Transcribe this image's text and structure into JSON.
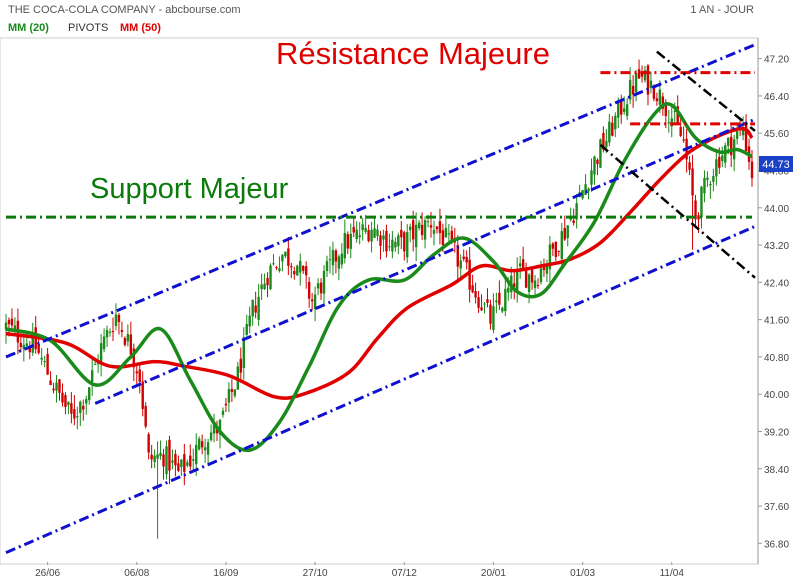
{
  "header": {
    "title": "THE COCA-COLA COMPANY - abcbourse.com",
    "period": "1 AN - JOUR"
  },
  "legend": [
    {
      "label": "MM (20)",
      "color": "#1a8a1a"
    },
    {
      "label": "PIVOTS",
      "color": "#333333"
    },
    {
      "label": "MM (50)",
      "color": "#e00000"
    }
  ],
  "annotations": {
    "resistance": "Résistance Majeure",
    "support": "Support Majeur"
  },
  "chart_data": {
    "type": "candlestick",
    "x_tick_labels": [
      {
        "label": "26/06",
        "index": 14
      },
      {
        "label": "06/08",
        "index": 44
      },
      {
        "label": "16/09",
        "index": 74
      },
      {
        "label": "27/10",
        "index": 104
      },
      {
        "label": "07/12",
        "index": 134
      },
      {
        "label": "20/01",
        "index": 164
      },
      {
        "label": "01/03",
        "index": 194
      },
      {
        "label": "11/04",
        "index": 224
      }
    ],
    "y_ticks": [
      36.8,
      37.6,
      38.4,
      39.2,
      40.0,
      40.8,
      41.6,
      42.4,
      43.2,
      44.0,
      44.8,
      45.6,
      46.4,
      47.2
    ],
    "ylim": [
      36.4,
      47.6
    ],
    "last_price": "44.73",
    "colors": {
      "up": "#1a8a1a",
      "down": "#d00000",
      "mm20": "#1a8a1a",
      "mm50": "#e00000",
      "channel": "#1010d0",
      "resistance": "#e00000",
      "support": "#0a7a0a",
      "wedge": "#000000",
      "annotation_resistance": "#e00000",
      "annotation_support": "#0a7a0a"
    },
    "close_anchors": [
      [
        0,
        41.45
      ],
      [
        10,
        41.0
      ],
      [
        16,
        40.2
      ],
      [
        22,
        39.5
      ],
      [
        27,
        40.0
      ],
      [
        32,
        41.0
      ],
      [
        37,
        41.7
      ],
      [
        42,
        41.0
      ],
      [
        45,
        40.4
      ],
      [
        48,
        38.6
      ],
      [
        53,
        38.7
      ],
      [
        58,
        38.3
      ],
      [
        62,
        38.6
      ],
      [
        67,
        39.1
      ],
      [
        72,
        39.3
      ],
      [
        78,
        40.4
      ],
      [
        83,
        41.8
      ],
      [
        88,
        42.6
      ],
      [
        93,
        43.0
      ],
      [
        98,
        42.8
      ],
      [
        103,
        42.0
      ],
      [
        108,
        42.6
      ],
      [
        113,
        43.2
      ],
      [
        118,
        43.4
      ],
      [
        123,
        43.6
      ],
      [
        128,
        43.3
      ],
      [
        133,
        43.2
      ],
      [
        138,
        43.5
      ],
      [
        143,
        43.7
      ],
      [
        148,
        43.3
      ],
      [
        153,
        42.8
      ],
      [
        158,
        42.2
      ],
      [
        163,
        41.6
      ],
      [
        168,
        42.1
      ],
      [
        173,
        42.6
      ],
      [
        178,
        42.5
      ],
      [
        183,
        43.0
      ],
      [
        188,
        43.5
      ],
      [
        193,
        44.2
      ],
      [
        198,
        45.0
      ],
      [
        203,
        45.6
      ],
      [
        208,
        46.3
      ],
      [
        213,
        46.8
      ],
      [
        218,
        46.6
      ],
      [
        223,
        46.1
      ],
      [
        228,
        45.4
      ],
      [
        232,
        43.8
      ],
      [
        236,
        44.6
      ],
      [
        240,
        45.1
      ],
      [
        244,
        45.4
      ],
      [
        248,
        45.7
      ],
      [
        251,
        44.73
      ]
    ],
    "mm20": [
      [
        0,
        41.4
      ],
      [
        15,
        41.15
      ],
      [
        30,
        40.2
      ],
      [
        42,
        40.8
      ],
      [
        52,
        41.4
      ],
      [
        62,
        40.3
      ],
      [
        72,
        39.2
      ],
      [
        82,
        38.8
      ],
      [
        92,
        39.4
      ],
      [
        102,
        40.6
      ],
      [
        112,
        41.9
      ],
      [
        122,
        42.45
      ],
      [
        134,
        42.45
      ],
      [
        144,
        43.0
      ],
      [
        154,
        43.35
      ],
      [
        164,
        42.85
      ],
      [
        172,
        42.2
      ],
      [
        180,
        42.15
      ],
      [
        188,
        42.8
      ],
      [
        198,
        43.7
      ],
      [
        208,
        45.0
      ],
      [
        218,
        46.0
      ],
      [
        224,
        46.2
      ],
      [
        232,
        45.5
      ],
      [
        240,
        45.2
      ],
      [
        246,
        45.25
      ],
      [
        251,
        45.1
      ]
    ],
    "mm50": [
      [
        0,
        41.3
      ],
      [
        20,
        41.1
      ],
      [
        35,
        40.6
      ],
      [
        50,
        40.7
      ],
      [
        60,
        40.6
      ],
      [
        75,
        40.4
      ],
      [
        90,
        39.95
      ],
      [
        100,
        40.0
      ],
      [
        115,
        40.45
      ],
      [
        125,
        41.2
      ],
      [
        135,
        41.85
      ],
      [
        150,
        42.35
      ],
      [
        160,
        42.75
      ],
      [
        170,
        42.65
      ],
      [
        180,
        42.75
      ],
      [
        190,
        42.9
      ],
      [
        200,
        43.25
      ],
      [
        210,
        43.9
      ],
      [
        220,
        44.6
      ],
      [
        230,
        45.2
      ],
      [
        240,
        45.55
      ],
      [
        248,
        45.7
      ],
      [
        251,
        45.5
      ]
    ],
    "channel_lines": [
      {
        "name": "channel-upper-line",
        "from": [
          0,
          40.8
        ],
        "to": [
          252,
          47.5
        ]
      },
      {
        "name": "channel-middle-line",
        "from": [
          30,
          39.8
        ],
        "to": [
          252,
          45.9
        ]
      },
      {
        "name": "channel-lower-line",
        "from": [
          0,
          36.6
        ],
        "to": [
          252,
          43.6
        ]
      }
    ],
    "resistance_lines": [
      {
        "name": "resistance-line-top",
        "from": [
          200,
          46.9
        ],
        "to": [
          252,
          46.9
        ]
      },
      {
        "name": "resistance-line-mid",
        "from": [
          210,
          45.8
        ],
        "to": [
          252,
          45.8
        ]
      }
    ],
    "support_line": {
      "level": 43.8
    },
    "wedge_lines": [
      {
        "name": "wedge-upper-line",
        "from": [
          219,
          47.35
        ],
        "to": [
          252,
          45.65
        ]
      },
      {
        "name": "wedge-lower-line",
        "from": [
          200,
          45.35
        ],
        "to": [
          252,
          42.5
        ]
      }
    ]
  }
}
